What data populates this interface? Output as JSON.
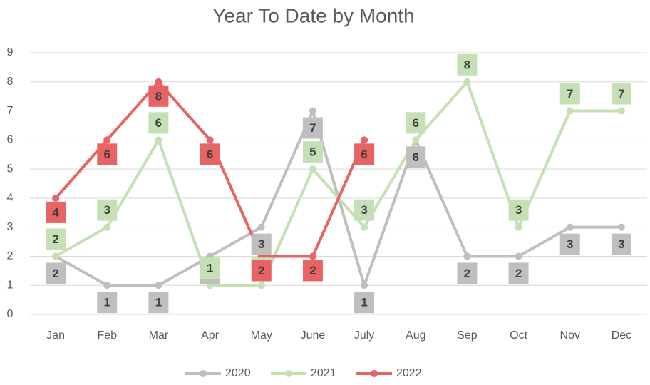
{
  "chart_data": {
    "type": "line",
    "title": "Year To Date by Month",
    "categories": [
      "Jan",
      "Feb",
      "Mar",
      "Apr",
      "May",
      "June",
      "July",
      "Aug",
      "Sep",
      "Oct",
      "Nov",
      "Dec"
    ],
    "series": [
      {
        "name": "2020",
        "color": "#bfbfbf",
        "values": [
          2,
          1,
          1,
          2,
          3,
          7,
          1,
          6,
          2,
          2,
          3,
          3
        ]
      },
      {
        "name": "2021",
        "color": "#c5e0b4",
        "values": [
          2,
          3,
          6,
          1,
          1,
          5,
          3,
          6,
          8,
          3,
          7,
          7
        ]
      },
      {
        "name": "2022",
        "color": "#e86464",
        "values": [
          4,
          6,
          8,
          6,
          2,
          2,
          6,
          null,
          null,
          null,
          null,
          null
        ]
      }
    ],
    "ylim": [
      0,
      9
    ],
    "yticks": [
      0,
      1,
      2,
      3,
      4,
      5,
      6,
      7,
      8,
      9
    ],
    "grid": true,
    "data_labels": true,
    "legend": "bottom"
  }
}
